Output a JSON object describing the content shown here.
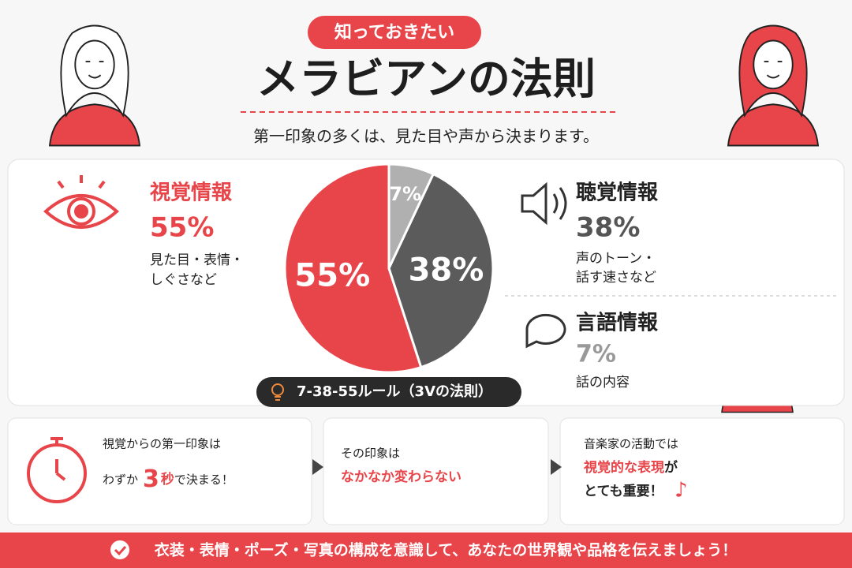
{
  "badge": "知っておきたい",
  "title": "メラビアンの法則",
  "subtitle": "第一印象の多くは、見た目や声から決まります。",
  "chart_data": {
    "type": "pie",
    "categories": [
      "視覚情報",
      "聴覚情報",
      "言語情報"
    ],
    "values": [
      55,
      38,
      7
    ],
    "value_labels": [
      "55%",
      "38%",
      "7%"
    ],
    "colors": [
      "#e8454a",
      "#5b5b5b",
      "#b0b0b0"
    ],
    "start_angle": 0,
    "direction": "counterclockwise"
  },
  "panels": [
    {
      "description": [
        "見た目・表情・",
        "しぐさなど"
      ]
    },
    {
      "description": [
        "声のトーン・",
        "話す速さなど"
      ]
    },
    {
      "description": [
        "話の内容"
      ]
    }
  ],
  "rule": "7-38-55ルール（3Vの法則）",
  "cards": [
    {
      "lines": [
        [
          "視覚からの第一印象は"
        ],
        [
          "わずか",
          "3",
          "秒",
          "で決まる！"
        ]
      ]
    },
    {
      "lines": [
        [
          "その印象は"
        ],
        [
          "なかなか変わらない"
        ]
      ]
    },
    {
      "lines": [
        [
          "音楽家の活動では"
        ],
        [
          "視覚的な表現",
          "が"
        ],
        [
          "とても重要！"
        ]
      ]
    }
  ],
  "footer": "衣装・表情・ポーズ・写真の構成を意識して、あなたの世界観や品格を伝えましょう！"
}
